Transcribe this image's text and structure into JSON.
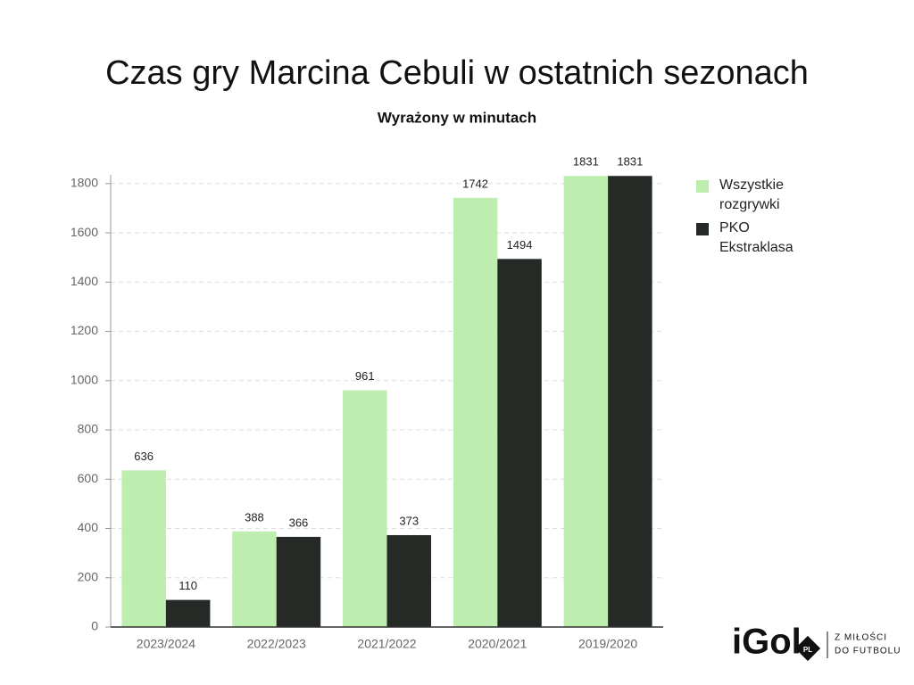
{
  "chart_data": {
    "type": "bar",
    "title": "Czas gry Marcina Cebuli w ostatnich sezonach",
    "subtitle": "Wyrażony w minutach",
    "categories": [
      "2023/2024",
      "2022/2023",
      "2021/2022",
      "2020/2021",
      "2019/2020"
    ],
    "series": [
      {
        "name": "Wszystkie rozgrywki",
        "color": "#bdeeb0",
        "values": [
          636,
          388,
          961,
          1742,
          1831
        ]
      },
      {
        "name": "PKO Ekstraklasa",
        "color": "#262a26",
        "values": [
          110,
          366,
          373,
          1494,
          1831
        ]
      }
    ],
    "ylim": [
      0,
      1850
    ],
    "yticks": [
      0,
      200,
      400,
      600,
      800,
      1000,
      1200,
      1400,
      1600,
      1800
    ],
    "grid": true,
    "legend": "right"
  },
  "logo": {
    "name": "iGol",
    "badge": "PL",
    "tagline": [
      "Z MIŁOŚCI",
      "DO FUTBOLU"
    ]
  }
}
